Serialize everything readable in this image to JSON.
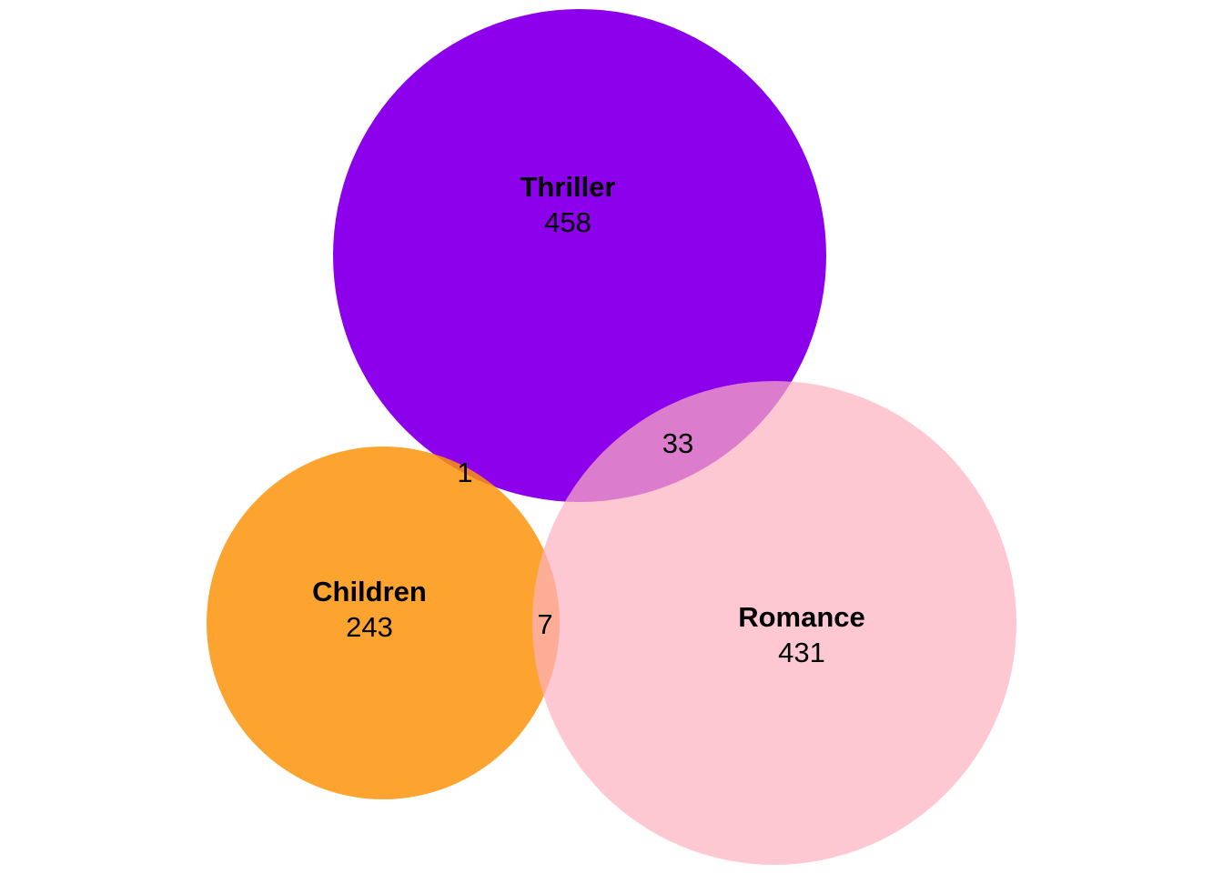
{
  "sets": {
    "thriller": {
      "name": "Thriller",
      "count": "458",
      "color": "#8c00eb"
    },
    "children": {
      "name": "Children",
      "count": "243",
      "color": "#fb940b"
    },
    "romance": {
      "name": "Romance",
      "count": "431",
      "color": "#fdb0c0"
    }
  },
  "intersections": {
    "thriller_children": "1",
    "thriller_romance": "33",
    "children_romance": "7"
  }
}
